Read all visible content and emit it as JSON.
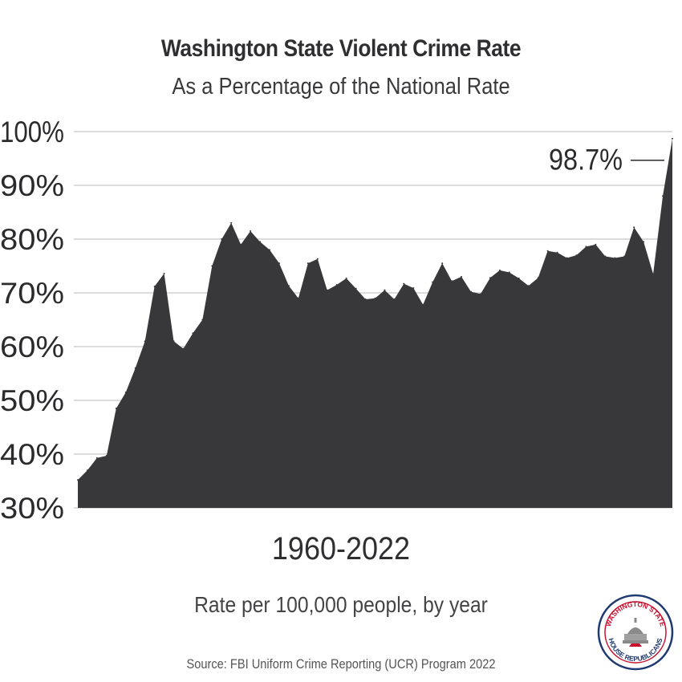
{
  "title": "Washington State Violent Crime Rate",
  "subtitle": "As a Percentage of the National Rate",
  "range_label": "1960-2022",
  "note": "Rate per 100,000 people, by year",
  "source": "Source: FBI Uniform Crime Reporting (UCR) Program 2022",
  "seal": {
    "top_text": "WASHINGTON STATE",
    "bottom_text": "HOUSE REPUBLICANS"
  },
  "colors": {
    "fill": "#38383a",
    "grid": "#c8c8c8",
    "text": "#2b2b2d",
    "seal_red": "#c8102e",
    "seal_blue": "#1f3a73"
  },
  "chart_data": {
    "type": "area",
    "ylim": [
      30,
      100
    ],
    "yticks": [
      "30%",
      "40%",
      "50%",
      "60%",
      "70%",
      "80%",
      "90%",
      "100%"
    ],
    "ytick_values": [
      30,
      40,
      50,
      60,
      70,
      80,
      90,
      100
    ],
    "grid": true,
    "annotation": "98.7%",
    "annotation_value": 98.7,
    "x": [
      1960,
      1961,
      1962,
      1963,
      1964,
      1965,
      1966,
      1967,
      1968,
      1969,
      1970,
      1971,
      1972,
      1973,
      1974,
      1975,
      1976,
      1977,
      1978,
      1979,
      1980,
      1981,
      1982,
      1983,
      1984,
      1985,
      1986,
      1987,
      1988,
      1989,
      1990,
      1991,
      1992,
      1993,
      1994,
      1995,
      1996,
      1997,
      1998,
      1999,
      2000,
      2001,
      2002,
      2003,
      2004,
      2005,
      2006,
      2007,
      2008,
      2009,
      2010,
      2011,
      2012,
      2013,
      2014,
      2015,
      2016,
      2017,
      2018,
      2019,
      2020,
      2021,
      2022
    ],
    "values": [
      35.2,
      37.0,
      39.3,
      39.7,
      48.5,
      51.5,
      56.0,
      61.0,
      71.2,
      73.6,
      61.0,
      59.6,
      62.5,
      65.0,
      75.0,
      80.0,
      83.0,
      79.0,
      81.5,
      79.5,
      78.0,
      75.5,
      71.3,
      69.0,
      75.5,
      76.3,
      70.5,
      71.5,
      72.7,
      70.8,
      68.8,
      69.0,
      70.5,
      68.8,
      71.7,
      70.9,
      67.8,
      72.0,
      75.5,
      72.2,
      73.0,
      70.2,
      69.8,
      72.8,
      74.2,
      73.8,
      72.7,
      71.3,
      72.8,
      77.8,
      77.5,
      76.5,
      77.0,
      78.6,
      79.0,
      76.8,
      76.5,
      76.8,
      82.2,
      79.5,
      73.5,
      88.0,
      98.7
    ]
  }
}
